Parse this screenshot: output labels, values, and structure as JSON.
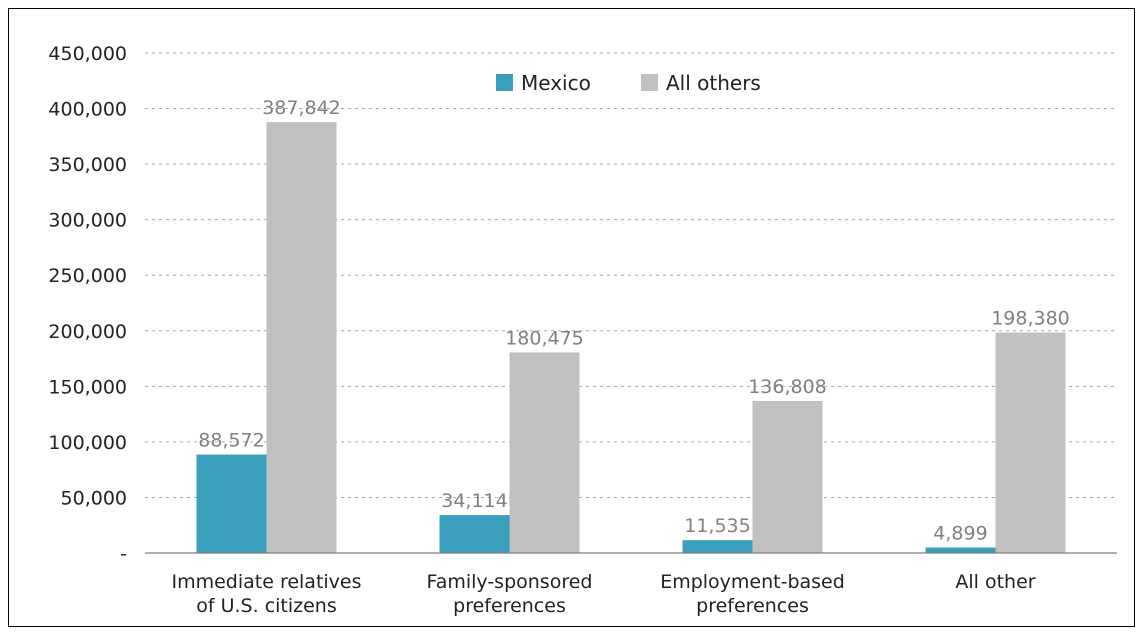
{
  "chart_data": {
    "type": "bar",
    "categories": [
      [
        "Immediate relatives",
        "of U.S. citizens"
      ],
      [
        "Family-sponsored",
        "preferences"
      ],
      [
        "Employment-based",
        "preferences"
      ],
      [
        "All other"
      ]
    ],
    "series": [
      {
        "name": "Mexico",
        "color": "#3a9fba",
        "values": [
          88572,
          34114,
          11535,
          4899
        ],
        "value_labels": [
          "88,572",
          "34,114",
          "11,535",
          "4,899"
        ]
      },
      {
        "name": "All others",
        "color": "#c0c0c0",
        "values": [
          387842,
          180475,
          136808,
          198380
        ],
        "value_labels": [
          "387,842",
          "180,475",
          "136,808",
          "198,380"
        ]
      }
    ],
    "ylim": [
      0,
      450000
    ],
    "yticks": [
      0,
      50000,
      100000,
      150000,
      200000,
      250000,
      300000,
      350000,
      400000,
      450000
    ],
    "ytick_labels": [
      "-",
      "50,000",
      "100,000",
      "150,000",
      "200,000",
      "250,000",
      "300,000",
      "350,000",
      "400,000",
      "450,000"
    ],
    "grid": "dashed-horizontal",
    "legend_position": "top-center",
    "title": "",
    "xlabel": "",
    "ylabel": ""
  }
}
